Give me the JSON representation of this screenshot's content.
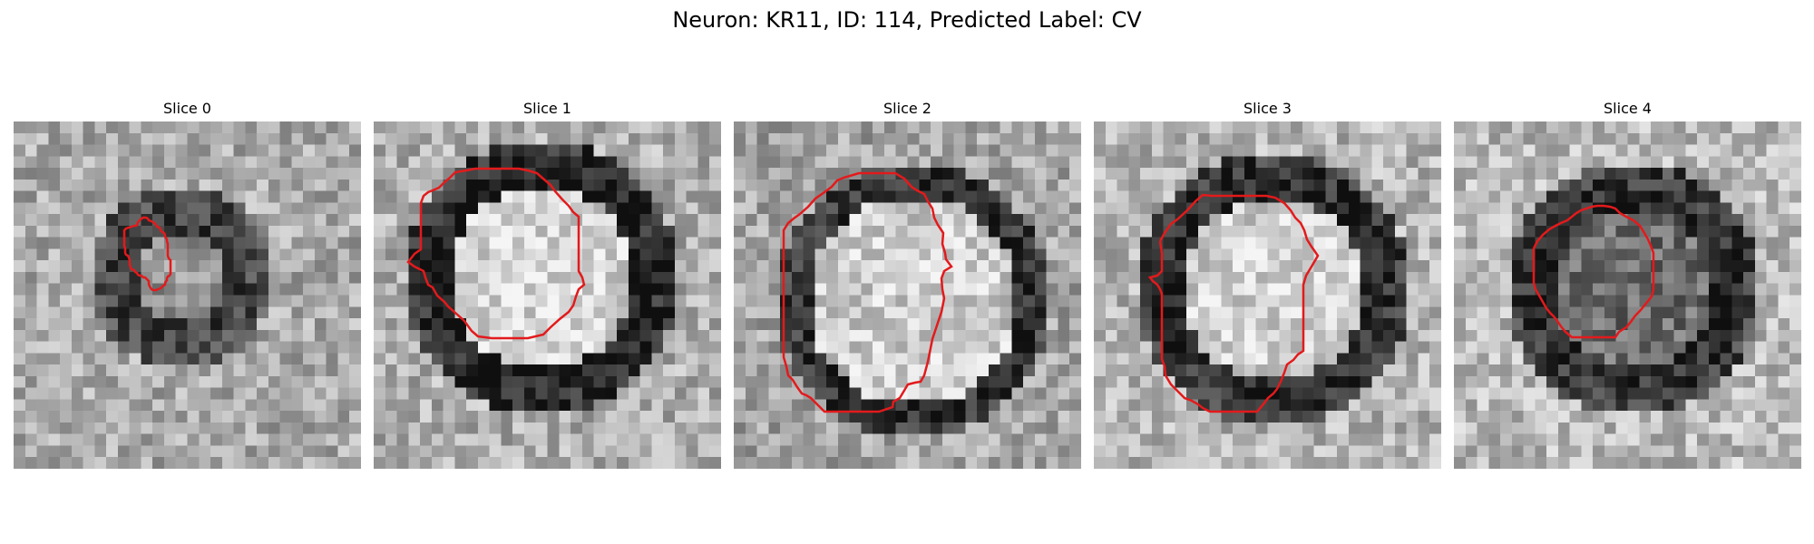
{
  "figure": {
    "title": "Neuron: KR11, ID: 114, Predicted Label: CV",
    "contour_color": "#e31a1c",
    "colormap": "gray",
    "panels": [
      {
        "title": "Slice 0"
      },
      {
        "title": "Slice 1"
      },
      {
        "title": "Slice 2"
      },
      {
        "title": "Slice 3"
      },
      {
        "title": "Slice 4"
      }
    ]
  }
}
